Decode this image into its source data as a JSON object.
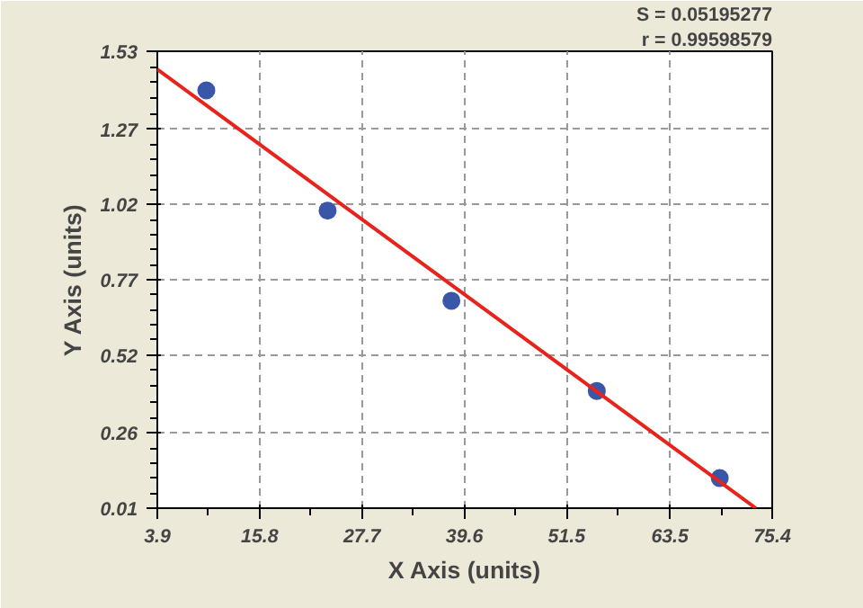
{
  "chart_data": {
    "type": "scatter",
    "xlabel": "X Axis (units)",
    "ylabel": "Y Axis (units)",
    "x": [
      9.6,
      23.7,
      38.1,
      55.0,
      69.3
    ],
    "series": [
      {
        "type": "scatter",
        "marker": "circle",
        "color": "#3a56a8",
        "values": [
          1.4,
          1.0,
          0.7,
          0.4,
          0.11
        ]
      },
      {
        "type": "line",
        "color": "#e8231c",
        "x": [
          3.9,
          73.5
        ],
        "values": [
          1.47,
          0.01
        ]
      }
    ],
    "xlim": [
      3.9,
      75.4
    ],
    "xticks": [
      3.9,
      15.8,
      27.7,
      39.6,
      51.5,
      63.5,
      75.4
    ],
    "ylim": [
      0.01,
      1.53
    ],
    "yticks": [
      0.01,
      0.26,
      0.52,
      0.77,
      1.02,
      1.27,
      1.53
    ],
    "grid": true,
    "annotations": [
      "S = 0.05195277",
      "r = 0.99598579"
    ]
  }
}
